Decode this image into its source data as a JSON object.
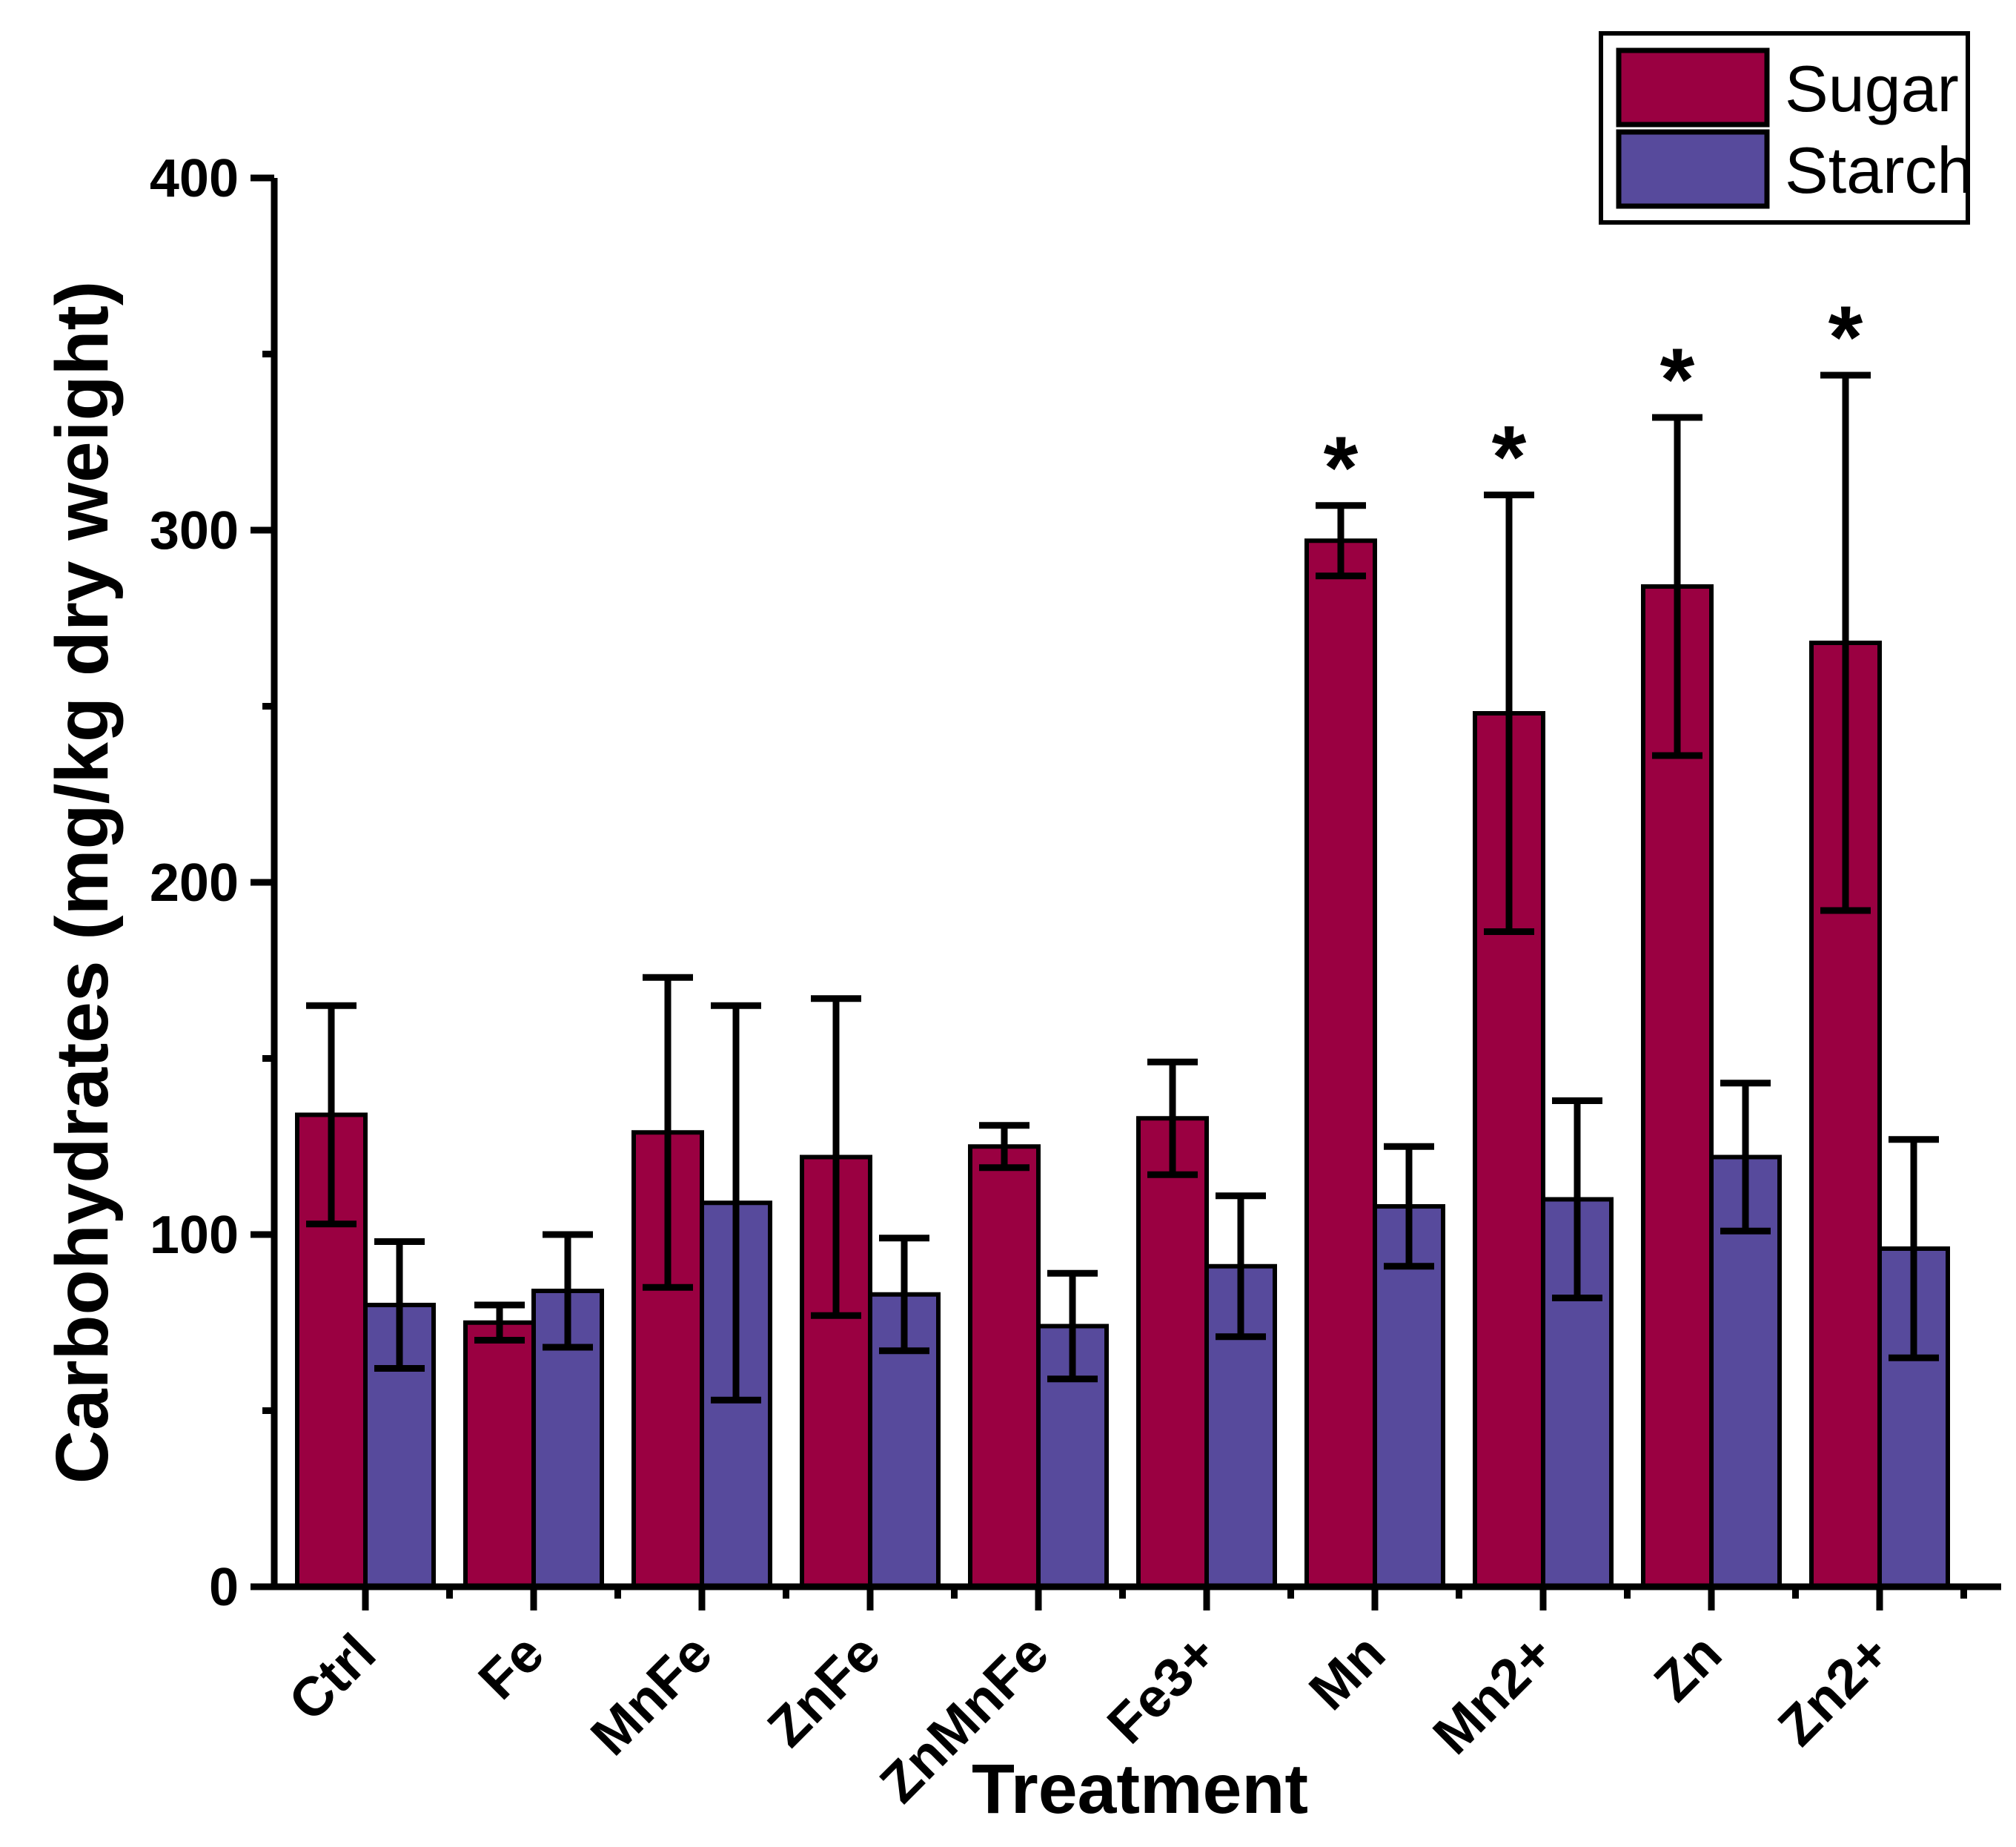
{
  "figure": {
    "background_color": "#ffffff",
    "axis_color": "#000000"
  },
  "legend": {
    "position": "top-right",
    "items": [
      {
        "label": "Sugar",
        "color": "#9A0041"
      },
      {
        "label": "Starch",
        "color": "#574A9C"
      }
    ]
  },
  "chart_data": {
    "type": "bar",
    "title": "",
    "xlabel": "Treatment",
    "ylabel": "Carbohydrates (mg/kg dry weight)",
    "categories": [
      "Ctrl",
      "Fe",
      "MnFe",
      "ZnFe",
      "ZnMnFe",
      "Fe3+",
      "Mn",
      "Mn2+",
      "Zn",
      "Zn2+"
    ],
    "series": [
      {
        "name": "Sugar",
        "color": "#9A0041",
        "values": [
          134,
          75,
          129,
          122,
          125,
          133,
          297,
          248,
          284,
          268
        ],
        "errors": [
          31,
          5,
          44,
          45,
          6,
          16,
          10,
          62,
          48,
          76
        ]
      },
      {
        "name": "Starch",
        "color": "#574A9C",
        "values": [
          80,
          84,
          109,
          83,
          74,
          91,
          108,
          110,
          122,
          96
        ],
        "errors": [
          18,
          16,
          56,
          16,
          15,
          20,
          17,
          28,
          21,
          31
        ]
      }
    ],
    "ylim": [
      0,
      400
    ],
    "yticks": [
      0,
      100,
      200,
      300,
      400
    ],
    "yticks_minor": [
      50,
      150,
      250,
      350
    ],
    "grid": false,
    "error_bars": true,
    "bar_outline_color": "#000000",
    "legend_position": "top-right",
    "significance": {
      "symbol": "*",
      "series": "Sugar",
      "categories": [
        "Mn",
        "Mn2+",
        "Zn",
        "Zn2+"
      ]
    }
  }
}
